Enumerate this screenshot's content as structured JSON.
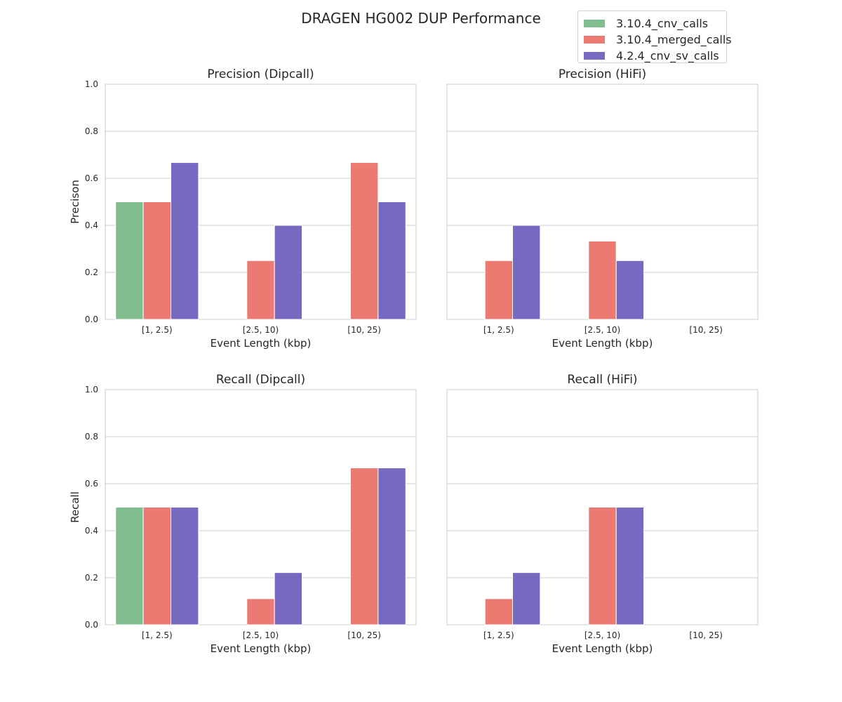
{
  "suptitle": "DRAGEN HG002 DUP Performance",
  "legend": [
    {
      "name": "3.10.4_cnv_calls",
      "color": "#80bd8f"
    },
    {
      "name": "3.10.4_merged_calls",
      "color": "#ea7a72"
    },
    {
      "name": "4.2.4_cnv_sv_calls",
      "color": "#7769c0"
    }
  ],
  "chart_data": [
    {
      "type": "bar",
      "title": "Precision (Dipcall)",
      "xlabel": "Event Length (kbp)",
      "ylabel": "Precison",
      "categories": [
        "[1, 2.5)",
        "[2.5, 10)",
        "[10, 25)"
      ],
      "ylim": [
        0,
        1
      ],
      "yticks": [
        "0.0",
        "0.2",
        "0.4",
        "0.6",
        "0.8",
        "1.0"
      ],
      "grid": true,
      "series": [
        {
          "name": "3.10.4_cnv_calls",
          "values": [
            0.5,
            null,
            null
          ]
        },
        {
          "name": "3.10.4_merged_calls",
          "values": [
            0.5,
            0.25,
            0.667
          ]
        },
        {
          "name": "4.2.4_cnv_sv_calls",
          "values": [
            0.667,
            0.4,
            0.5
          ]
        }
      ]
    },
    {
      "type": "bar",
      "title": "Precision (HiFi)",
      "xlabel": "Event Length (kbp)",
      "ylabel": "",
      "categories": [
        "[1, 2.5)",
        "[2.5, 10)",
        "[10, 25)"
      ],
      "ylim": [
        0,
        1
      ],
      "yticks": [],
      "grid": true,
      "series": [
        {
          "name": "3.10.4_cnv_calls",
          "values": [
            null,
            null,
            null
          ]
        },
        {
          "name": "3.10.4_merged_calls",
          "values": [
            0.25,
            0.333,
            null
          ]
        },
        {
          "name": "4.2.4_cnv_sv_calls",
          "values": [
            0.4,
            0.25,
            null
          ]
        }
      ]
    },
    {
      "type": "bar",
      "title": "Recall (Dipcall)",
      "xlabel": "Event Length (kbp)",
      "ylabel": "Recall",
      "categories": [
        "[1, 2.5)",
        "[2.5, 10)",
        "[10, 25)"
      ],
      "ylim": [
        0,
        1
      ],
      "yticks": [
        "0.0",
        "0.2",
        "0.4",
        "0.6",
        "0.8",
        "1.0"
      ],
      "grid": true,
      "series": [
        {
          "name": "3.10.4_cnv_calls",
          "values": [
            0.5,
            null,
            null
          ]
        },
        {
          "name": "3.10.4_merged_calls",
          "values": [
            0.5,
            0.111,
            0.667
          ]
        },
        {
          "name": "4.2.4_cnv_sv_calls",
          "values": [
            0.5,
            0.222,
            0.667
          ]
        }
      ]
    },
    {
      "type": "bar",
      "title": "Recall (HiFi)",
      "xlabel": "Event Length (kbp)",
      "ylabel": "",
      "categories": [
        "[1, 2.5)",
        "[2.5, 10)",
        "[10, 25)"
      ],
      "ylim": [
        0,
        1
      ],
      "yticks": [],
      "grid": true,
      "series": [
        {
          "name": "3.10.4_cnv_calls",
          "values": [
            null,
            null,
            null
          ]
        },
        {
          "name": "3.10.4_merged_calls",
          "values": [
            0.111,
            0.5,
            null
          ]
        },
        {
          "name": "4.2.4_cnv_sv_calls",
          "values": [
            0.222,
            0.5,
            null
          ]
        }
      ]
    }
  ]
}
